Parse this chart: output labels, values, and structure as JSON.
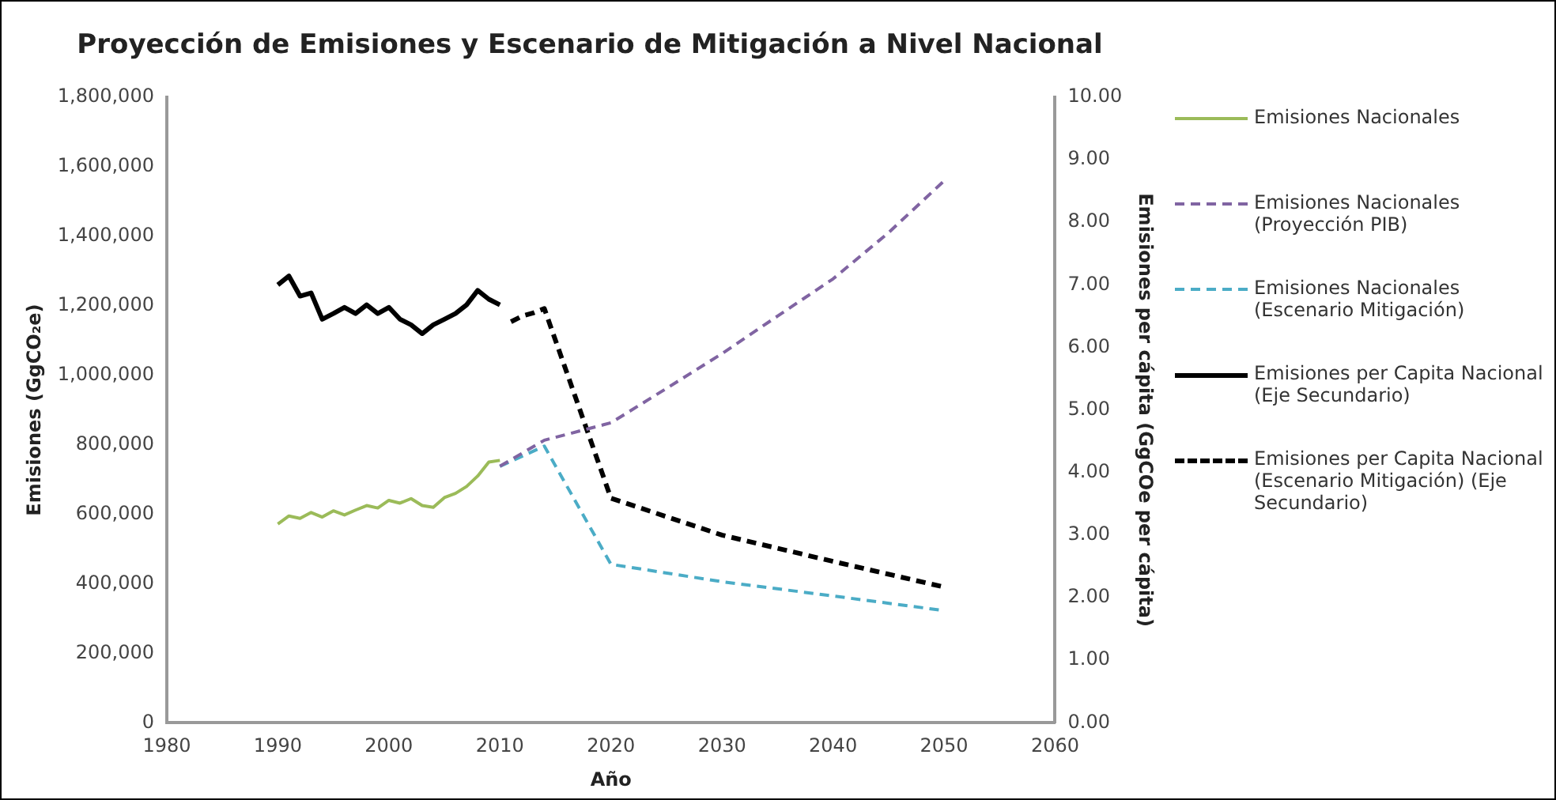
{
  "chart_data": {
    "type": "line",
    "title": "Proyección de Emisiones y Escenario de Mitigación a Nivel Nacional",
    "xlabel": "Año",
    "ylabel": "Emisiones (GgCO₂e)",
    "y2label": "Emisiones per cápita (GgCOe per cápita)",
    "xlim": [
      1980,
      2060
    ],
    "xticks": [
      1980,
      1990,
      2000,
      2010,
      2020,
      2030,
      2040,
      2050,
      2060
    ],
    "ylim": [
      0,
      1800000
    ],
    "yticks": [
      {
        "value": 0,
        "label": "0"
      },
      {
        "value": 200000,
        "label": "200,000"
      },
      {
        "value": 400000,
        "label": "400,000"
      },
      {
        "value": 600000,
        "label": "600,000"
      },
      {
        "value": 800000,
        "label": "800,000"
      },
      {
        "value": 1000000,
        "label": "1,000,000"
      },
      {
        "value": 1200000,
        "label": "1,200,000"
      },
      {
        "value": 1400000,
        "label": "1,400,000"
      },
      {
        "value": 1600000,
        "label": "1,600,000"
      },
      {
        "value": 1800000,
        "label": "1,800,000"
      }
    ],
    "y2lim": [
      0,
      10
    ],
    "y2ticks": [
      {
        "value": 0,
        "label": "0.00"
      },
      {
        "value": 1,
        "label": "1.00"
      },
      {
        "value": 2,
        "label": "2.00"
      },
      {
        "value": 3,
        "label": "3.00"
      },
      {
        "value": 4,
        "label": "4.00"
      },
      {
        "value": 5,
        "label": "5.00"
      },
      {
        "value": 6,
        "label": "6.00"
      },
      {
        "value": 7,
        "label": "7.00"
      },
      {
        "value": 8,
        "label": "8.00"
      },
      {
        "value": 9,
        "label": "9.00"
      },
      {
        "value": 10,
        "label": "10.00"
      }
    ],
    "grid": false,
    "legend": "right",
    "marker": "none",
    "series": [
      {
        "name": "Emisiones Nacionales",
        "color": "#9bbb59",
        "line_style": "solid",
        "x": [
          1990,
          1991,
          1992,
          1993,
          1994,
          1995,
          1996,
          1997,
          1998,
          1999,
          2000,
          2001,
          2002,
          2003,
          2004,
          2005,
          2006,
          2007,
          2008,
          2009,
          2010
        ],
        "values": [
          572000,
          595000,
          588000,
          605000,
          592000,
          610000,
          598000,
          612000,
          625000,
          618000,
          640000,
          632000,
          645000,
          625000,
          620000,
          648000,
          660000,
          680000,
          710000,
          750000,
          755000
        ]
      },
      {
        "name": "Emisiones Nacionales (Proyección PIB)",
        "color": "#8064a2",
        "line_style": "dashed",
        "x": [
          2010,
          2014,
          2020,
          2025,
          2030,
          2035,
          2040,
          2045,
          2050
        ],
        "values": [
          738000,
          813000,
          863000,
          962000,
          1062000,
          1170000,
          1277000,
          1410000,
          1559000
        ]
      },
      {
        "name": "Emisiones Nacionales (Escenario Mitigación)",
        "color": "#4bacc6",
        "line_style": "dashed",
        "x": [
          2010,
          2014,
          2020,
          2030,
          2040,
          2050
        ],
        "values": [
          738000,
          796000,
          456000,
          406000,
          365000,
          323000
        ]
      },
      {
        "name": "Emisiones per Capita Nacional (Eje Secundario)",
        "color": "#000000",
        "line_style": "solid",
        "axis": "y2",
        "x": [
          1990,
          1991,
          1992,
          1993,
          1994,
          1995,
          1996,
          1997,
          1998,
          1999,
          2000,
          2001,
          2002,
          2003,
          2004,
          2005,
          2006,
          2007,
          2008,
          2009,
          2010
        ],
        "values": [
          7.0,
          7.14,
          6.82,
          6.87,
          6.45,
          6.54,
          6.64,
          6.54,
          6.68,
          6.54,
          6.64,
          6.45,
          6.36,
          6.22,
          6.36,
          6.45,
          6.54,
          6.68,
          6.91,
          6.77,
          6.68
        ]
      },
      {
        "name": "Emisiones per Capita Nacional (Escenario Mitigación) (Eje Secundario)",
        "color": "#000000",
        "line_style": "dashed",
        "axis": "y2",
        "x": [
          2011,
          2012,
          2013,
          2014,
          2020,
          2030,
          2040,
          2050
        ],
        "values": [
          6.41,
          6.5,
          6.55,
          6.62,
          3.59,
          3.0,
          2.58,
          2.17
        ]
      }
    ]
  }
}
